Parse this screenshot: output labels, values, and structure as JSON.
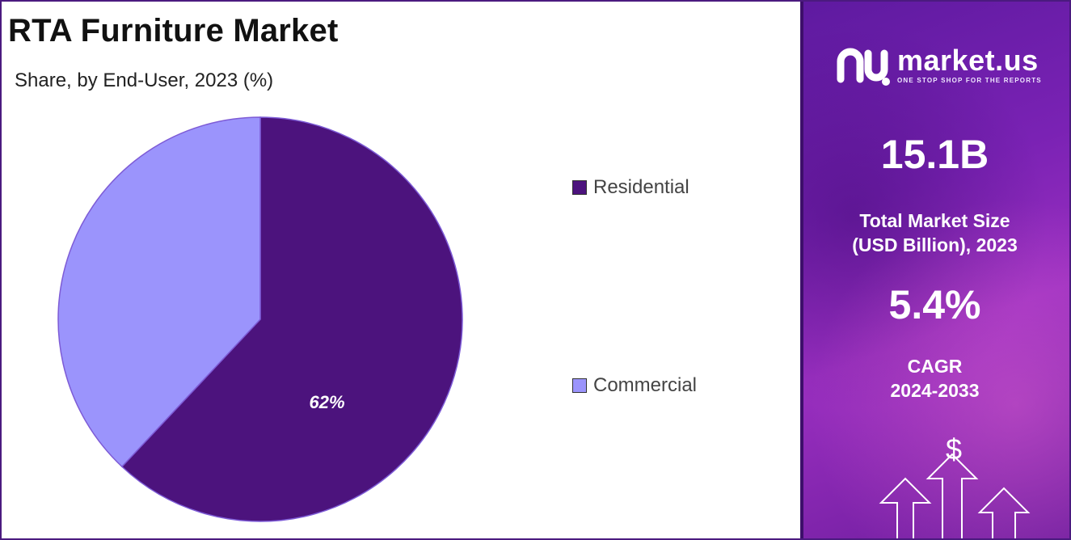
{
  "header": {
    "title": "RTA Furniture Market",
    "subtitle": "Share, by End-User, 2023 (%)"
  },
  "chart_data": {
    "type": "pie",
    "title": "RTA Furniture Market",
    "subtitle": "Share, by End-User, 2023 (%)",
    "categories": [
      "Residential",
      "Commercial"
    ],
    "values": [
      62,
      38
    ],
    "data_labels": [
      "62%",
      ""
    ],
    "colors": [
      "#4c137d",
      "#9b94fc"
    ],
    "legend_position": "right",
    "start_angle_deg": 0,
    "direction": "clockwise"
  },
  "legend": {
    "items": [
      {
        "label": "Residential",
        "color": "#4c137d"
      },
      {
        "label": "Commercial",
        "color": "#9b94fc"
      }
    ]
  },
  "sidebar": {
    "logo_name": "market.us",
    "logo_tagline": "ONE STOP SHOP FOR THE REPORTS",
    "market_size_value": "15.1B",
    "market_size_label_line1": "Total Market Size",
    "market_size_label_line2": "(USD Billion), 2023",
    "cagr_value": "5.4%",
    "cagr_label_line1": "CAGR",
    "cagr_label_line2": "2024-2033",
    "currency_symbol": "$"
  },
  "colors": {
    "accent": "#4b1a7f",
    "panel": "#7a22b4"
  }
}
